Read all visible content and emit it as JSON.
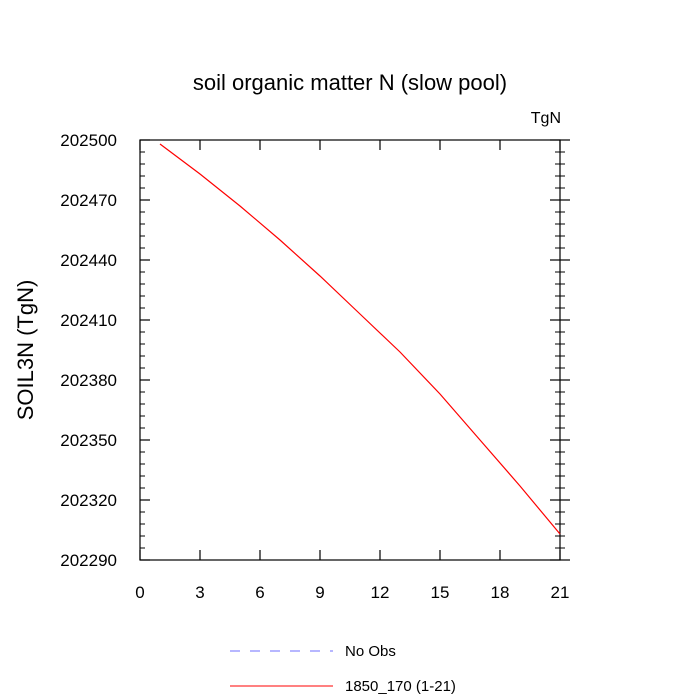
{
  "chart_data": {
    "type": "line",
    "title": "soil organic matter N (slow pool)",
    "units_label": "TgN",
    "ylabel": "SOIL3N  (TgN)",
    "xlabel": "",
    "xlim": [
      0,
      21
    ],
    "ylim": [
      202290,
      202500
    ],
    "xticks": [
      0,
      3,
      6,
      9,
      12,
      15,
      18,
      21
    ],
    "yticks": [
      202290,
      202320,
      202350,
      202380,
      202410,
      202440,
      202470,
      202500
    ],
    "x": [
      1,
      3,
      5,
      7,
      9,
      11,
      13,
      15,
      17,
      19,
      21
    ],
    "series": [
      {
        "name": "1850_170 (1-21)",
        "color": "#ff0000",
        "style": "solid",
        "values": [
          202498,
          202483,
          202467,
          202450,
          202432,
          202413,
          202394,
          202373,
          202350,
          202327,
          202303
        ]
      }
    ],
    "legend": [
      {
        "label": "No Obs",
        "color": "#6f6fff",
        "style": "dashed"
      },
      {
        "label": "1850_170 (1-21)",
        "color": "#ff0000",
        "style": "solid"
      }
    ],
    "grid": false,
    "legend_placement": "bottom"
  }
}
